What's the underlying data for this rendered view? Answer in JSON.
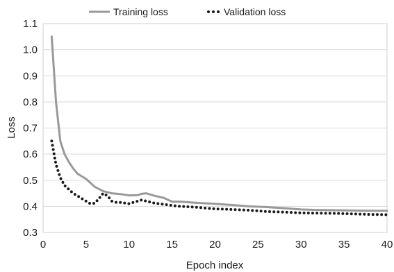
{
  "chart_data": {
    "type": "line",
    "xlabel": "Epoch index",
    "ylabel": "Loss",
    "xlim": [
      0,
      40
    ],
    "ylim": [
      0.3,
      1.1
    ],
    "x_ticks": [
      0,
      5,
      10,
      15,
      20,
      25,
      30,
      35,
      40
    ],
    "y_ticks": [
      0.3,
      0.4,
      0.5,
      0.6,
      0.7,
      0.8,
      0.9,
      1.0,
      1.1
    ],
    "x_tick_labels": [
      "0",
      "5",
      "10",
      "15",
      "20",
      "25",
      "30",
      "35",
      "40"
    ],
    "y_tick_labels": [
      "0.3",
      "0.4",
      "0.5",
      "0.6",
      "0.7",
      "0.8",
      "0.9",
      "1.0",
      "1.1"
    ],
    "grid": "horizontal",
    "legend_position": "top",
    "series": [
      {
        "name": "Training loss",
        "style": "solid",
        "color": "#999999",
        "x": [
          1,
          1.5,
          2,
          2.5,
          3,
          3.5,
          4,
          4.5,
          5,
          5.5,
          6,
          7,
          8,
          9,
          10,
          11,
          11.5,
          12,
          12.5,
          13,
          14,
          15,
          16,
          18,
          20,
          22,
          24,
          26,
          28,
          30,
          32,
          34,
          36,
          38,
          40
        ],
        "y": [
          1.05,
          0.8,
          0.65,
          0.6,
          0.57,
          0.545,
          0.525,
          0.515,
          0.505,
          0.49,
          0.475,
          0.458,
          0.45,
          0.447,
          0.442,
          0.443,
          0.448,
          0.45,
          0.445,
          0.44,
          0.433,
          0.418,
          0.418,
          0.413,
          0.41,
          0.405,
          0.4,
          0.397,
          0.393,
          0.388,
          0.386,
          0.385,
          0.384,
          0.383,
          0.383
        ]
      },
      {
        "name": "Validation loss",
        "style": "dotted",
        "color": "#1a1a1a",
        "x": [
          1,
          1.5,
          2,
          2.5,
          3,
          3.5,
          4,
          4.5,
          5,
          5.5,
          6,
          6.5,
          7,
          7.5,
          8,
          8.5,
          9,
          10,
          10.5,
          11,
          11.5,
          12,
          13,
          14,
          15,
          16,
          18,
          20,
          22,
          24,
          26,
          28,
          30,
          32,
          34,
          36,
          38,
          40
        ],
        "y": [
          0.65,
          0.56,
          0.51,
          0.48,
          0.465,
          0.45,
          0.44,
          0.43,
          0.42,
          0.41,
          0.412,
          0.43,
          0.45,
          0.44,
          0.42,
          0.415,
          0.415,
          0.41,
          0.415,
          0.42,
          0.425,
          0.42,
          0.412,
          0.408,
          0.403,
          0.4,
          0.396,
          0.39,
          0.388,
          0.385,
          0.38,
          0.378,
          0.375,
          0.374,
          0.373,
          0.371,
          0.369,
          0.368
        ]
      }
    ]
  }
}
